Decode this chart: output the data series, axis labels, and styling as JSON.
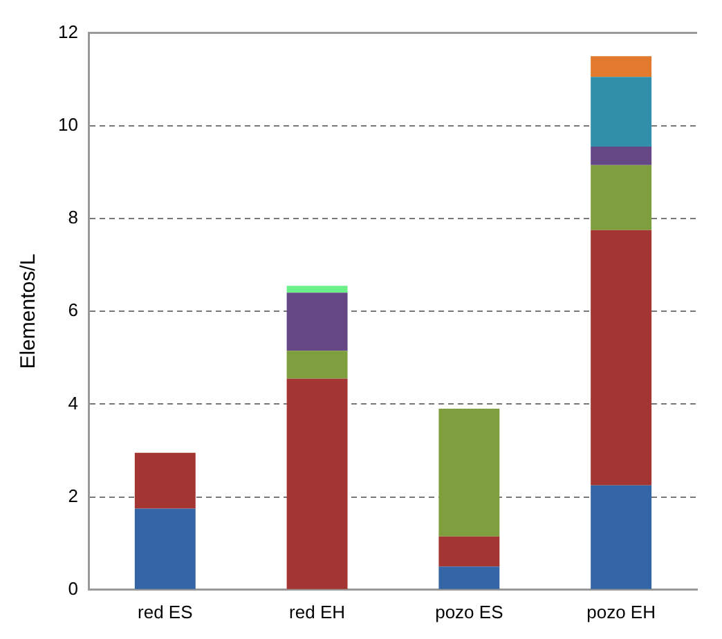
{
  "chart_data": {
    "type": "bar",
    "stacked": true,
    "ylabel": "Elementos/L",
    "categories": [
      "red ES",
      "red EH",
      "pozo ES",
      "pozo EH"
    ],
    "series": [
      {
        "color": "#3465a4",
        "values": [
          1.75,
          null,
          0.5,
          2.25
        ]
      },
      {
        "color": "#a33532",
        "values": [
          1.2,
          4.55,
          0.65,
          5.5
        ]
      },
      {
        "color": "#7f9f3e",
        "values": [
          null,
          0.6,
          2.75,
          1.4
        ]
      },
      {
        "color": "#664786",
        "values": [
          null,
          1.25,
          null,
          0.4
        ]
      },
      {
        "color": "#318fab",
        "values": [
          null,
          null,
          null,
          1.5
        ]
      },
      {
        "color": "#e17a2c",
        "values": [
          null,
          null,
          null,
          0.45
        ]
      },
      {
        "color": "#6cf08a",
        "values": [
          null,
          0.15,
          null,
          null
        ]
      }
    ],
    "ylim": [
      0,
      12
    ],
    "yticks": [
      0,
      2,
      4,
      6,
      8,
      10,
      12
    ],
    "grid": "y",
    "legend": false
  }
}
